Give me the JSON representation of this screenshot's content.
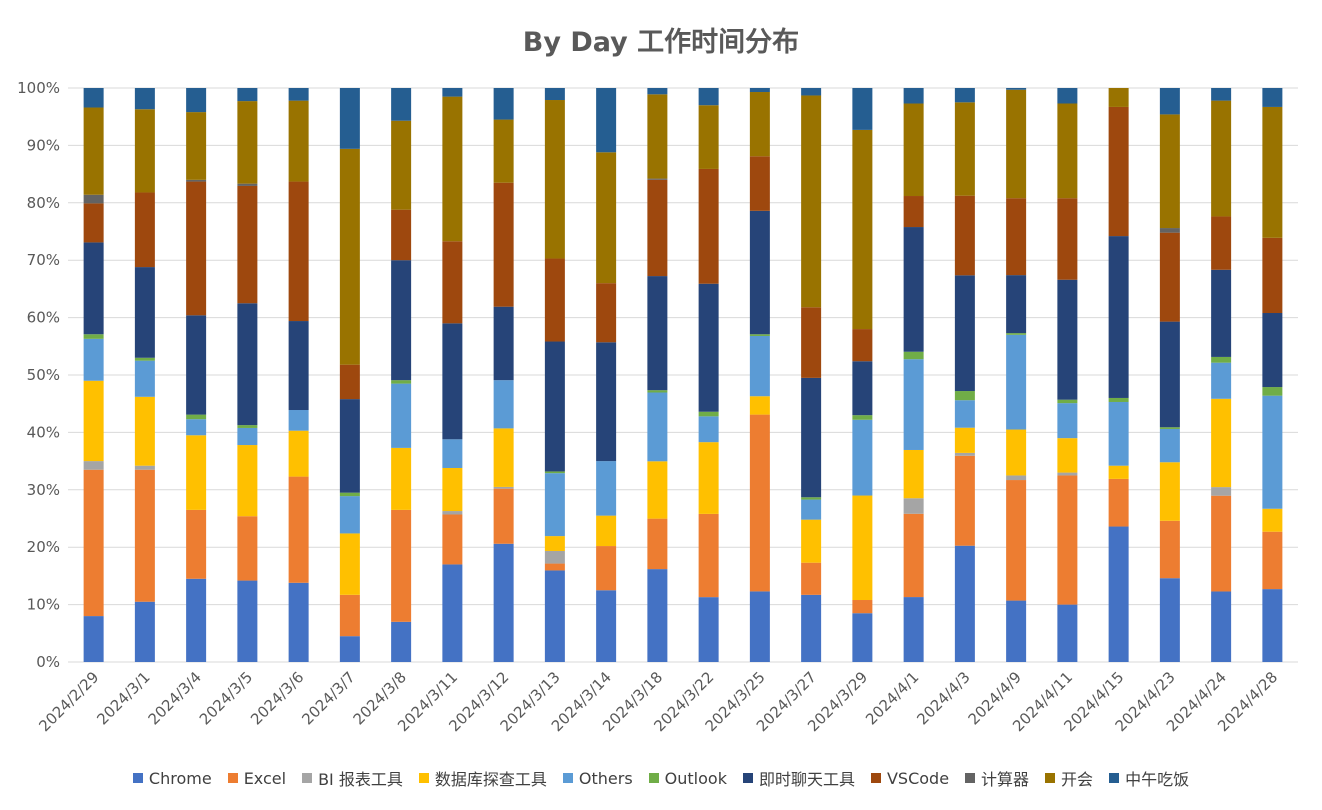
{
  "chart_data": {
    "type": "bar",
    "stacked": "percent",
    "title": "By Day 工作时间分布",
    "xlabel": "",
    "ylabel": "",
    "ylim": [
      0,
      100
    ],
    "y_ticks": [
      "0%",
      "10%",
      "20%",
      "30%",
      "40%",
      "50%",
      "60%",
      "70%",
      "80%",
      "90%",
      "100%"
    ],
    "grid": true,
    "legend_position": "bottom",
    "categories": [
      "2024/2/29",
      "2024/3/1",
      "2024/3/4",
      "2024/3/5",
      "2024/3/6",
      "2024/3/7",
      "2024/3/8",
      "2024/3/11",
      "2024/3/12",
      "2024/3/13",
      "2024/3/14",
      "2024/3/18",
      "2024/3/22",
      "2024/3/25",
      "2024/3/27",
      "2024/3/29",
      "2024/4/1",
      "2024/4/3",
      "2024/4/9",
      "2024/4/11",
      "2024/4/15",
      "2024/4/23",
      "2024/4/24",
      "2024/4/28"
    ],
    "series": [
      {
        "name": "Chrome",
        "color": "#4472C4",
        "values": [
          8,
          10.5,
          14.5,
          14.3,
          13.8,
          4.5,
          7,
          17,
          20.6,
          16,
          12.5,
          16.2,
          11.3,
          12.3,
          11.7,
          8.5,
          11.3,
          20.3,
          10.7,
          10,
          23.6,
          14.6,
          12.3,
          12.7
        ]
      },
      {
        "name": "Excel",
        "color": "#ED7D31",
        "values": [
          25.5,
          23,
          12,
          11.3,
          18.5,
          7.2,
          19.5,
          8.7,
          9.6,
          1.2,
          7.7,
          8.8,
          14.5,
          30.8,
          5.6,
          2.3,
          14.5,
          15.7,
          21,
          22.5,
          8.3,
          10,
          16.7,
          10
        ]
      },
      {
        "name": "BI 报表工具",
        "color": "#A5A5A5",
        "values": [
          1.5,
          0.7,
          0,
          0,
          0,
          0,
          0,
          0.6,
          0.3,
          2.2,
          0,
          0,
          0,
          0,
          0,
          0,
          2.7,
          0.5,
          0.8,
          0.5,
          0,
          0,
          1.5,
          0
        ]
      },
      {
        "name": "数据库探查工具",
        "color": "#FFC000",
        "values": [
          14,
          12,
          13,
          12.5,
          8,
          10.7,
          10.8,
          7.5,
          10.2,
          2.6,
          5.3,
          10,
          12.5,
          3.2,
          7.5,
          18.2,
          8.4,
          4.4,
          8,
          6,
          2.3,
          10.2,
          15.4,
          4
        ]
      },
      {
        "name": "Others",
        "color": "#5B9BD5",
        "values": [
          7.3,
          6.3,
          2.8,
          3,
          3.6,
          6.5,
          11.2,
          5,
          8.4,
          11,
          9.5,
          12,
          4.5,
          10.5,
          3.5,
          13.2,
          15.8,
          4.8,
          16.5,
          6.1,
          11.1,
          5.8,
          6.3,
          19.7
        ]
      },
      {
        "name": "Outlook",
        "color": "#70AD47",
        "values": [
          0.8,
          0.5,
          0.8,
          0.5,
          0,
          0.6,
          0.6,
          0,
          0,
          0.3,
          0,
          0.4,
          0.8,
          0.3,
          0.4,
          0.8,
          1.3,
          1.6,
          0.3,
          0.6,
          0.7,
          0.3,
          1,
          1.5
        ]
      },
      {
        "name": "即时聊天工具",
        "color": "#264478",
        "values": [
          16,
          15.8,
          17.3,
          21.4,
          15.5,
          16.3,
          20.9,
          20.2,
          12.8,
          22.7,
          20.7,
          19.9,
          22.3,
          21.5,
          20.8,
          9.4,
          21.7,
          20.2,
          10.1,
          20.9,
          28.2,
          18.4,
          15.2,
          12.9
        ]
      },
      {
        "name": "VSCode",
        "color": "#9E480E",
        "values": [
          6.8,
          13,
          23.3,
          20.6,
          24.3,
          6,
          8.8,
          14.3,
          21.6,
          14.5,
          10.3,
          16.8,
          20,
          9.5,
          12.3,
          5.6,
          5.4,
          13.9,
          13.4,
          14.2,
          22.5,
          15.5,
          9.3,
          13.1
        ]
      },
      {
        "name": "计算器",
        "color": "#636363",
        "values": [
          1.5,
          0,
          0.3,
          0.4,
          0,
          0,
          0,
          0,
          0,
          0,
          0,
          0.2,
          0,
          0,
          0,
          0,
          0,
          0,
          0,
          0,
          0,
          0.8,
          0,
          0
        ]
      },
      {
        "name": "开会",
        "color": "#997300",
        "values": [
          15.2,
          14.5,
          11.8,
          14.5,
          14.1,
          37.6,
          15.5,
          25.2,
          11,
          27.7,
          22.8,
          14.7,
          11.1,
          11.2,
          36.9,
          34.7,
          16.1,
          16.3,
          18.9,
          16.5,
          3.3,
          19.8,
          20.2,
          22.8
        ]
      },
      {
        "name": "中午吃饭",
        "color": "#255E91",
        "values": [
          3.4,
          3.7,
          4.2,
          2.3,
          2.2,
          10.6,
          5.7,
          1.5,
          5.5,
          2.1,
          11.2,
          1.1,
          3,
          0.7,
          1.3,
          7.3,
          2.7,
          2.5,
          0.3,
          2.7,
          0,
          4.6,
          2.2,
          3.3
        ]
      }
    ]
  }
}
